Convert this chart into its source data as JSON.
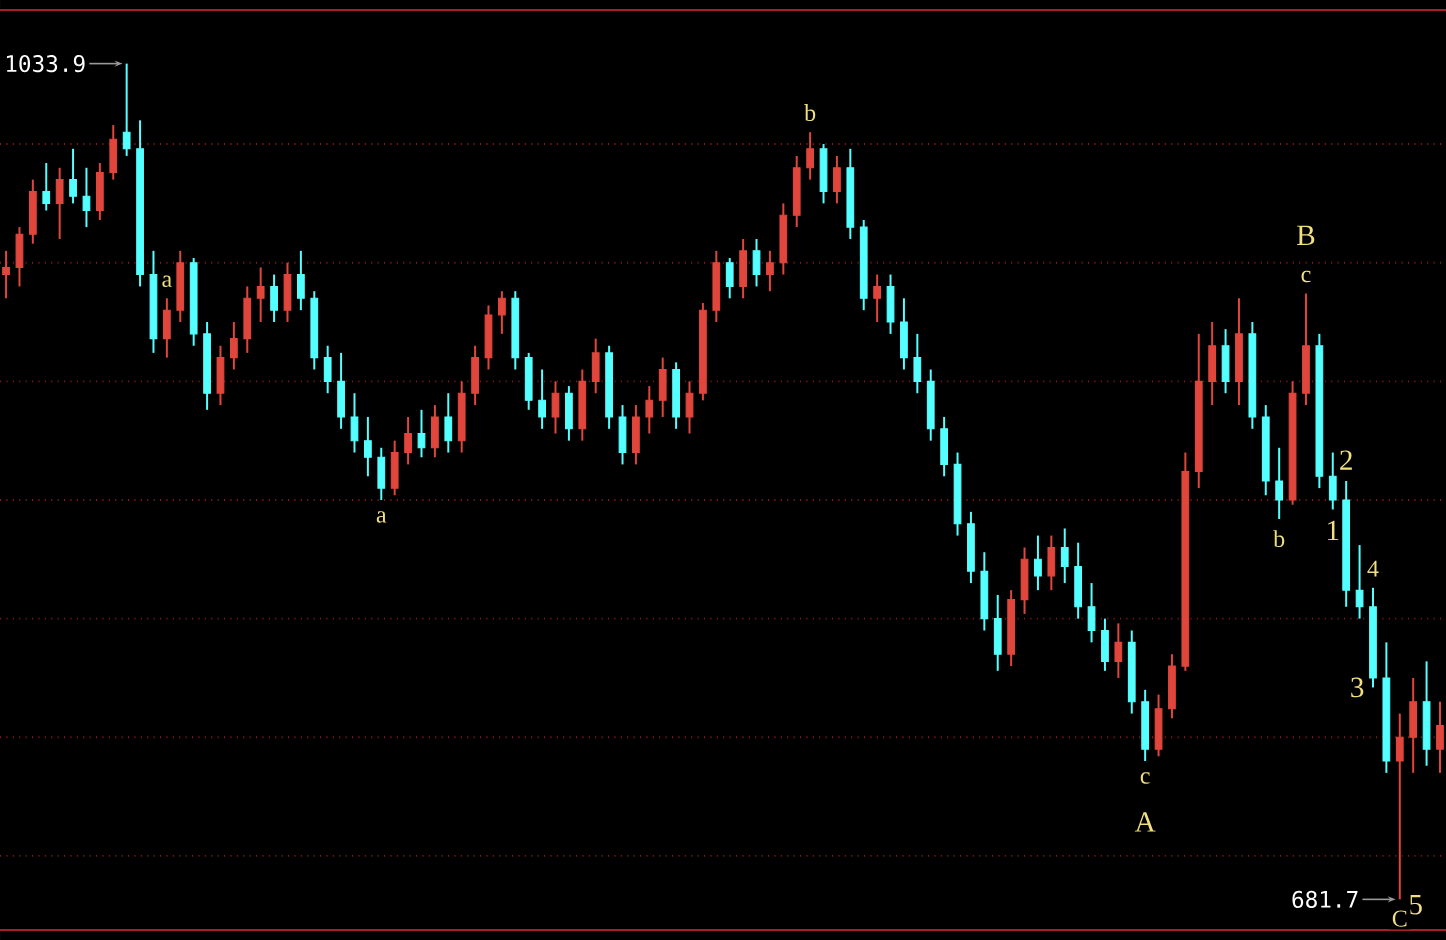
{
  "chart_data": {
    "type": "candlestick",
    "categories": [
      null,
      null,
      null,
      null,
      null,
      null,
      null,
      null,
      null,
      null,
      null,
      null,
      null,
      null,
      null,
      null,
      null,
      null,
      null,
      null,
      null,
      null,
      null,
      null,
      null,
      null,
      null,
      null,
      null,
      null,
      null,
      null,
      null,
      null,
      null,
      null,
      null,
      null,
      null,
      null,
      null,
      null,
      null,
      null,
      null,
      null,
      null,
      null,
      null,
      null,
      null,
      null,
      null,
      null,
      null,
      null,
      null,
      null,
      null,
      null,
      null,
      null,
      null,
      null,
      null,
      null,
      null,
      null,
      null,
      null,
      null,
      null,
      null,
      null,
      null,
      null,
      null,
      null,
      null,
      null,
      null,
      null,
      null,
      null,
      null,
      null,
      null,
      null,
      null,
      null,
      null,
      null,
      null,
      null,
      null,
      null,
      null,
      null,
      null,
      null,
      null,
      null,
      null,
      null,
      null,
      null,
      null,
      null
    ],
    "ohlc": [
      [
        945,
        955,
        935,
        948
      ],
      [
        948,
        965,
        940,
        962
      ],
      [
        962,
        985,
        958,
        980
      ],
      [
        980,
        992,
        972,
        975
      ],
      [
        975,
        990,
        960,
        985
      ],
      [
        985,
        998,
        975,
        978
      ],
      [
        978,
        990,
        965,
        972
      ],
      [
        972,
        992,
        968,
        988
      ],
      [
        988,
        1008,
        985,
        1002
      ],
      [
        1005,
        1033.9,
        995,
        998
      ],
      [
        998,
        1010,
        940,
        945
      ],
      [
        945,
        955,
        912,
        918
      ],
      [
        918,
        935,
        910,
        930
      ],
      [
        930,
        955,
        925,
        950
      ],
      [
        950,
        952,
        915,
        920
      ],
      [
        920,
        925,
        888,
        895
      ],
      [
        895,
        915,
        890,
        910
      ],
      [
        910,
        925,
        905,
        918
      ],
      [
        918,
        940,
        912,
        935
      ],
      [
        935,
        948,
        925,
        940
      ],
      [
        940,
        945,
        925,
        930
      ],
      [
        930,
        950,
        925,
        945
      ],
      [
        945,
        955,
        930,
        935
      ],
      [
        935,
        938,
        905,
        910
      ],
      [
        910,
        915,
        895,
        900
      ],
      [
        900,
        912,
        880,
        885
      ],
      [
        885,
        895,
        870,
        875
      ],
      [
        875,
        885,
        860,
        868
      ],
      [
        868,
        872,
        850,
        855
      ],
      [
        855,
        875,
        852,
        870
      ],
      [
        870,
        885,
        865,
        878
      ],
      [
        878,
        888,
        868,
        872
      ],
      [
        872,
        890,
        868,
        885
      ],
      [
        885,
        895,
        870,
        875
      ],
      [
        875,
        900,
        870,
        895
      ],
      [
        895,
        915,
        890,
        910
      ],
      [
        910,
        932,
        905,
        928
      ],
      [
        928,
        938,
        920,
        935
      ],
      [
        935,
        938,
        905,
        910
      ],
      [
        910,
        912,
        888,
        892
      ],
      [
        892,
        905,
        880,
        885
      ],
      [
        885,
        900,
        878,
        895
      ],
      [
        895,
        898,
        875,
        880
      ],
      [
        880,
        905,
        875,
        900
      ],
      [
        900,
        918,
        895,
        912
      ],
      [
        912,
        915,
        880,
        885
      ],
      [
        885,
        890,
        865,
        870
      ],
      [
        870,
        890,
        865,
        885
      ],
      [
        885,
        898,
        878,
        892
      ],
      [
        892,
        910,
        885,
        905
      ],
      [
        905,
        908,
        880,
        885
      ],
      [
        885,
        900,
        878,
        895
      ],
      [
        895,
        933,
        892,
        930
      ],
      [
        930,
        955,
        925,
        950
      ],
      [
        950,
        952,
        935,
        940
      ],
      [
        940,
        960,
        935,
        955
      ],
      [
        955,
        960,
        940,
        945
      ],
      [
        945,
        955,
        938,
        950
      ],
      [
        950,
        975,
        945,
        970
      ],
      [
        970,
        995,
        965,
        990
      ],
      [
        990,
        1005,
        985,
        998
      ],
      [
        998,
        1000,
        975,
        980
      ],
      [
        980,
        995,
        975,
        990
      ],
      [
        990,
        998,
        960,
        965
      ],
      [
        965,
        968,
        930,
        935
      ],
      [
        935,
        945,
        925,
        940
      ],
      [
        940,
        945,
        920,
        925
      ],
      [
        925,
        935,
        905,
        910
      ],
      [
        910,
        920,
        895,
        900
      ],
      [
        900,
        905,
        875,
        880
      ],
      [
        880,
        885,
        860,
        865
      ],
      [
        865,
        870,
        835,
        840
      ],
      [
        840,
        845,
        815,
        820
      ],
      [
        820,
        828,
        795,
        800
      ],
      [
        800,
        810,
        778,
        785
      ],
      [
        785,
        812,
        780,
        808
      ],
      [
        808,
        830,
        802,
        825
      ],
      [
        825,
        835,
        812,
        818
      ],
      [
        818,
        835,
        812,
        830
      ],
      [
        830,
        838,
        815,
        822
      ],
      [
        822,
        832,
        800,
        805
      ],
      [
        805,
        815,
        790,
        795
      ],
      [
        795,
        800,
        778,
        782
      ],
      [
        782,
        798,
        775,
        790
      ],
      [
        790,
        795,
        760,
        765
      ],
      [
        765,
        770,
        740,
        745
      ],
      [
        745,
        768,
        742,
        762
      ],
      [
        762,
        785,
        758,
        780
      ],
      [
        780,
        870,
        778,
        862
      ],
      [
        862,
        920,
        855,
        900
      ],
      [
        900,
        925,
        890,
        915
      ],
      [
        915,
        922,
        895,
        900
      ],
      [
        900,
        935,
        890,
        920
      ],
      [
        920,
        925,
        880,
        885
      ],
      [
        885,
        890,
        852,
        858
      ],
      [
        858,
        872,
        842,
        850
      ],
      [
        850,
        900,
        848,
        895
      ],
      [
        895,
        937,
        890,
        915
      ],
      [
        915,
        920,
        855,
        860
      ],
      [
        860,
        870,
        846,
        850
      ],
      [
        850,
        858,
        805,
        812
      ],
      [
        812,
        831,
        800,
        805
      ],
      [
        805,
        813,
        771,
        775
      ],
      [
        775,
        790,
        735,
        740
      ],
      [
        740,
        760,
        681.7,
        750
      ],
      [
        750,
        775,
        735,
        765
      ],
      [
        765,
        782,
        738,
        745
      ],
      [
        745,
        765,
        735,
        755
      ]
    ],
    "ylim": [
      668.8,
      1056.5
    ],
    "yticks": [
      {
        "value": 700,
        "label": null
      },
      {
        "value": 750,
        "label": null
      },
      {
        "value": 800,
        "label": null
      },
      {
        "value": 850,
        "label": null
      },
      {
        "value": 900,
        "label": null
      },
      {
        "value": 950,
        "label": null
      },
      {
        "value": 1000,
        "label": null
      }
    ],
    "grid": "y",
    "annotations": [
      "1033.9",
      {
        "text": "a",
        "y": 850
      },
      {
        "text": "b",
        "y": 1005
      },
      {
        "text": "c",
        "y": 740
      },
      {
        "text": "A",
        "y": 740
      },
      {
        "text": "a",
        "y": 935
      },
      {
        "text": "b",
        "y": 842
      },
      {
        "text": "c",
        "y": 937
      },
      {
        "text": "B",
        "y": 937
      },
      {
        "text": "2",
        "y": 858
      },
      {
        "text": "1",
        "y": 846
      },
      {
        "text": "4",
        "y": 813
      },
      {
        "text": "3",
        "y": 771
      },
      "681.7",
      "5",
      "C"
    ]
  }
}
